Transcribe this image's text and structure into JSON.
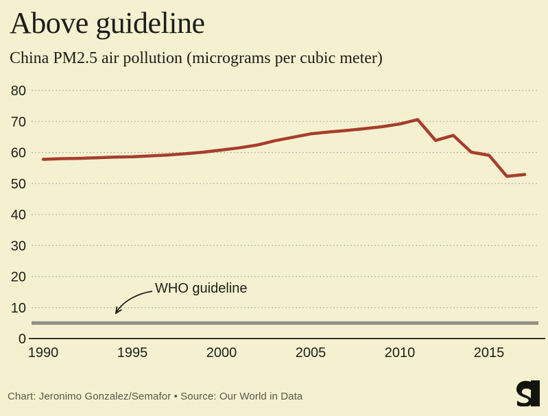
{
  "header": {
    "title": "Above guideline",
    "subtitle": "China PM2.5 air pollution (micrograms per cubic meter)"
  },
  "footer": {
    "credit": "Chart: Jeronimo Gonzalez/Semafor • Source: Our World in Data",
    "logo": "semafor-logo"
  },
  "colors": {
    "background": "#f5f1d0",
    "text": "#1d1d1b",
    "muted_text": "#57564c",
    "line": "#a63e2d",
    "who_line": "#8f8f85",
    "gridline": "#b3b3a6",
    "axis": "#33332e"
  },
  "chart_data": {
    "type": "line",
    "title": "Above guideline",
    "subtitle": "China PM2.5 air pollution (micrograms per cubic meter)",
    "xlabel": "",
    "ylabel": "micrograms per cubic meter",
    "series": [
      {
        "name": "China PM2.5",
        "x": [
          1990,
          1991,
          1992,
          1993,
          1994,
          1995,
          1996,
          1997,
          1998,
          1999,
          2000,
          2001,
          2002,
          2003,
          2004,
          2005,
          2006,
          2007,
          2008,
          2009,
          2010,
          2011,
          2012,
          2013,
          2014,
          2015,
          2016,
          2017
        ],
        "values": [
          57.8,
          58.0,
          58.1,
          58.3,
          58.5,
          58.6,
          58.9,
          59.2,
          59.6,
          60.1,
          60.8,
          61.5,
          62.4,
          63.8,
          64.9,
          66.0,
          66.6,
          67.1,
          67.7,
          68.3,
          69.2,
          70.6,
          63.9,
          65.5,
          60.1,
          59.1,
          52.3,
          52.9
        ]
      }
    ],
    "xticks": [
      1990,
      1995,
      2000,
      2005,
      2010,
      2015
    ],
    "yticks": [
      0,
      10,
      20,
      30,
      40,
      50,
      60,
      70,
      80
    ],
    "xlim": [
      1989.3,
      2017.8
    ],
    "ylim": [
      0,
      84
    ],
    "grid": "dotted-horizontal",
    "legend": "none",
    "annotation": {
      "label": "WHO guideline",
      "value": 5
    }
  }
}
